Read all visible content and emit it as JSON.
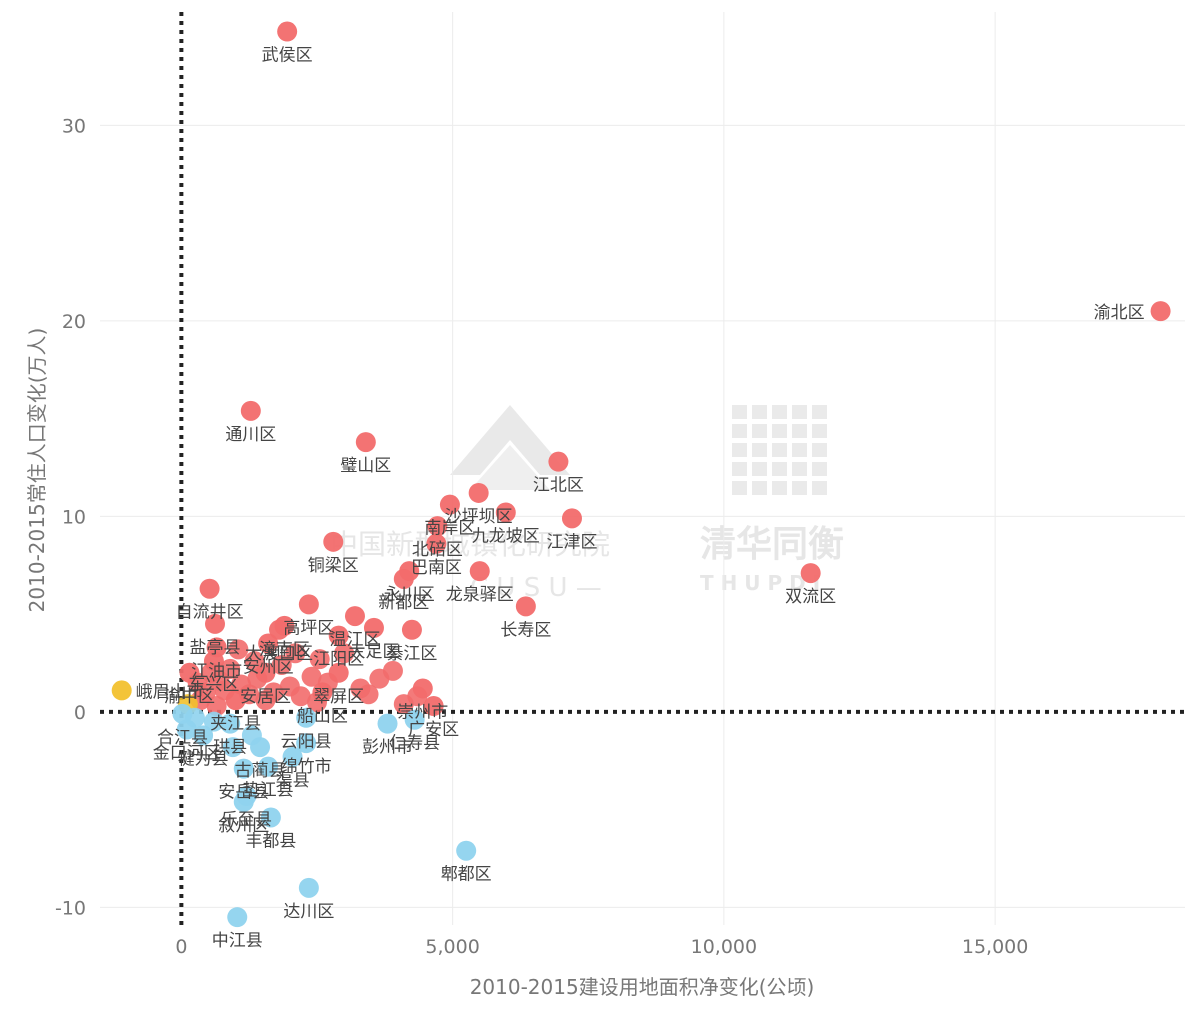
{
  "chart_data": {
    "type": "scatter",
    "xlabel": "2010-2015建设用地面积净变化(公顷)",
    "ylabel": "2010-2015常住人口变化(万人)",
    "xlim": [
      -1500,
      18500
    ],
    "ylim": [
      -10.9,
      35.8
    ],
    "x_ticks": [
      0,
      5000,
      10000,
      15000
    ],
    "x_tick_labels": [
      "0",
      "5,000",
      "10,000",
      "15,000"
    ],
    "y_ticks": [
      -10,
      0,
      10,
      20,
      30
    ],
    "y_tick_labels": [
      "-10",
      "0",
      "10",
      "20",
      "30"
    ],
    "grid": "vertical and horizontal",
    "reference_lines": {
      "x": 0,
      "y": 0,
      "style": "dotted"
    },
    "colors": {
      "red": "#f26b6b",
      "blue": "#8fd3ee",
      "yellow": "#f2c12e"
    },
    "watermark": {
      "left_title": "中国新型城镇化研究院",
      "left_sub": "C U S U —",
      "right_title": "清华同衡",
      "right_sub": "T H U P D I"
    },
    "labeled_points": [
      {
        "label": "武侯区",
        "x": 1950,
        "y": 34.8,
        "color": "red"
      },
      {
        "label": "渝北区",
        "x": 18050,
        "y": 20.5,
        "color": "red"
      },
      {
        "label": "通川区",
        "x": 1280,
        "y": 15.4,
        "color": "red"
      },
      {
        "label": "璧山区",
        "x": 3400,
        "y": 13.8,
        "color": "red"
      },
      {
        "label": "江北区",
        "x": 6950,
        "y": 12.8,
        "color": "red"
      },
      {
        "label": "沙坪坝区",
        "x": 5480,
        "y": 11.2,
        "color": "red"
      },
      {
        "label": "南岸区",
        "x": 4950,
        "y": 10.6,
        "color": "red"
      },
      {
        "label": "九龙坡区",
        "x": 5980,
        "y": 10.2,
        "color": "red"
      },
      {
        "label": "北碚区",
        "x": 4720,
        "y": 9.5,
        "color": "red"
      },
      {
        "label": "江津区",
        "x": 7200,
        "y": 9.9,
        "color": "red"
      },
      {
        "label": "铜梁区",
        "x": 2800,
        "y": 8.7,
        "color": "red"
      },
      {
        "label": "巴南区",
        "x": 4700,
        "y": 8.6,
        "color": "red"
      },
      {
        "label": "双流区",
        "x": 11600,
        "y": 7.1,
        "color": "red"
      },
      {
        "label": "永川区",
        "x": 4200,
        "y": 7.2,
        "color": "red"
      },
      {
        "label": "新都区",
        "x": 4100,
        "y": 6.8,
        "color": "red"
      },
      {
        "label": "龙泉驿区",
        "x": 5500,
        "y": 7.2,
        "color": "red"
      },
      {
        "label": "自流井区",
        "x": 520,
        "y": 6.3,
        "color": "red"
      },
      {
        "label": "高坪区",
        "x": 2350,
        "y": 5.5,
        "color": "red"
      },
      {
        "label": "长寿区",
        "x": 6350,
        "y": 5.4,
        "color": "red"
      },
      {
        "label": "温江区",
        "x": 3200,
        "y": 4.9,
        "color": "red"
      },
      {
        "label": "盐亭县",
        "x": 620,
        "y": 4.5,
        "color": "red"
      },
      {
        "label": "潼南区",
        "x": 1900,
        "y": 4.4,
        "color": "red"
      },
      {
        "label": "大足区",
        "x": 3550,
        "y": 4.3,
        "color": "red"
      },
      {
        "label": "大渡口区",
        "x": 1800,
        "y": 4.2,
        "color": "red"
      },
      {
        "label": "江阳区",
        "x": 2900,
        "y": 3.9,
        "color": "red"
      },
      {
        "label": "江油市",
        "x": 650,
        "y": 3.3,
        "color": "red"
      },
      {
        "label": "綦江区",
        "x": 4250,
        "y": 4.2,
        "color": "red"
      },
      {
        "label": "安州区",
        "x": 1600,
        "y": 3.5,
        "color": "red"
      },
      {
        "label": "渝中区",
        "x": 150,
        "y": 2.0,
        "color": "red"
      },
      {
        "label": "东兴区",
        "x": 600,
        "y": 2.6,
        "color": "red"
      },
      {
        "label": "翠屏区",
        "x": 2900,
        "y": 2.0,
        "color": "red"
      },
      {
        "label": "安居区",
        "x": 1550,
        "y": 2.0,
        "color": "red"
      },
      {
        "label": "崇州市",
        "x": 4450,
        "y": 1.2,
        "color": "red"
      },
      {
        "label": "船山区",
        "x": 2600,
        "y": 1.0,
        "color": "red"
      },
      {
        "label": "夹江县",
        "x": 1000,
        "y": 0.6,
        "color": "red"
      },
      {
        "label": "广安区",
        "x": 4650,
        "y": 0.3,
        "color": "red"
      },
      {
        "label": "峨眉山市",
        "x": -1100,
        "y": 1.1,
        "color": "yellow"
      },
      {
        "label": "合江县",
        "x": 20,
        "y": -0.1,
        "color": "blue"
      },
      {
        "label": "珙县",
        "x": 900,
        "y": -0.6,
        "color": "blue"
      },
      {
        "label": "云阳县",
        "x": 2300,
        "y": -0.3,
        "color": "blue"
      },
      {
        "label": "彭州市",
        "x": 3800,
        "y": -0.6,
        "color": "blue"
      },
      {
        "label": "金口河区",
        "x": 100,
        "y": -0.9,
        "color": "blue"
      },
      {
        "label": "仁寿县",
        "x": 4300,
        "y": -0.4,
        "color": "blue"
      },
      {
        "label": "犍为县",
        "x": 400,
        "y": -1.2,
        "color": "blue"
      },
      {
        "label": "古蔺县",
        "x": 1450,
        "y": -1.8,
        "color": "blue"
      },
      {
        "label": "绵竹市",
        "x": 2300,
        "y": -1.6,
        "color": "blue"
      },
      {
        "label": "渠县",
        "x": 2050,
        "y": -2.3,
        "color": "blue"
      },
      {
        "label": "安岳县",
        "x": 1150,
        "y": -2.9,
        "color": "blue"
      },
      {
        "label": "垫江县",
        "x": 1600,
        "y": -2.8,
        "color": "blue"
      },
      {
        "label": "乐至县",
        "x": 1200,
        "y": -4.3,
        "color": "blue"
      },
      {
        "label": "叙州区",
        "x": 1150,
        "y": -4.6,
        "color": "blue"
      },
      {
        "label": "丰都县",
        "x": 1650,
        "y": -5.4,
        "color": "blue"
      },
      {
        "label": "郫都区",
        "x": 5250,
        "y": -7.1,
        "color": "blue"
      },
      {
        "label": "达川区",
        "x": 2350,
        "y": -9.0,
        "color": "blue"
      },
      {
        "label": "中江县",
        "x": 1030,
        "y": -10.5,
        "color": "blue"
      }
    ],
    "unlabeled_points": [
      {
        "x": 300,
        "y": 1.5,
        "color": "red"
      },
      {
        "x": 450,
        "y": 1.0,
        "color": "red"
      },
      {
        "x": 550,
        "y": 2.0,
        "color": "red"
      },
      {
        "x": 700,
        "y": 1.6,
        "color": "red"
      },
      {
        "x": 800,
        "y": 1.1,
        "color": "red"
      },
      {
        "x": 900,
        "y": 2.2,
        "color": "red"
      },
      {
        "x": 1100,
        "y": 1.4,
        "color": "red"
      },
      {
        "x": 1250,
        "y": 0.9,
        "color": "red"
      },
      {
        "x": 1400,
        "y": 1.7,
        "color": "red"
      },
      {
        "x": 1700,
        "y": 1.0,
        "color": "red"
      },
      {
        "x": 1850,
        "y": 2.4,
        "color": "red"
      },
      {
        "x": 2000,
        "y": 1.3,
        "color": "red"
      },
      {
        "x": 2200,
        "y": 0.8,
        "color": "red"
      },
      {
        "x": 2400,
        "y": 1.8,
        "color": "red"
      },
      {
        "x": 2500,
        "y": 0.5,
        "color": "red"
      },
      {
        "x": 2700,
        "y": 1.5,
        "color": "red"
      },
      {
        "x": 3000,
        "y": 3.0,
        "color": "red"
      },
      {
        "x": 3300,
        "y": 1.2,
        "color": "red"
      },
      {
        "x": 3650,
        "y": 1.7,
        "color": "red"
      },
      {
        "x": 3900,
        "y": 2.1,
        "color": "red"
      },
      {
        "x": 4100,
        "y": 0.4,
        "color": "red"
      },
      {
        "x": 4350,
        "y": 0.8,
        "color": "red"
      },
      {
        "x": 1050,
        "y": 3.2,
        "color": "red"
      },
      {
        "x": 1350,
        "y": 2.6,
        "color": "red"
      },
      {
        "x": 2100,
        "y": 3.0,
        "color": "red"
      },
      {
        "x": 2550,
        "y": 2.7,
        "color": "red"
      },
      {
        "x": 350,
        "y": 0.6,
        "color": "red"
      },
      {
        "x": 650,
        "y": 0.3,
        "color": "red"
      },
      {
        "x": 1550,
        "y": 0.6,
        "color": "red"
      },
      {
        "x": 3450,
        "y": 0.9,
        "color": "red"
      },
      {
        "x": 120,
        "y": 0.4,
        "color": "yellow"
      },
      {
        "x": 250,
        "y": -0.3,
        "color": "blue"
      },
      {
        "x": 600,
        "y": -0.5,
        "color": "blue"
      },
      {
        "x": 950,
        "y": -1.8,
        "color": "blue"
      },
      {
        "x": 1300,
        "y": -1.2,
        "color": "blue"
      }
    ]
  }
}
